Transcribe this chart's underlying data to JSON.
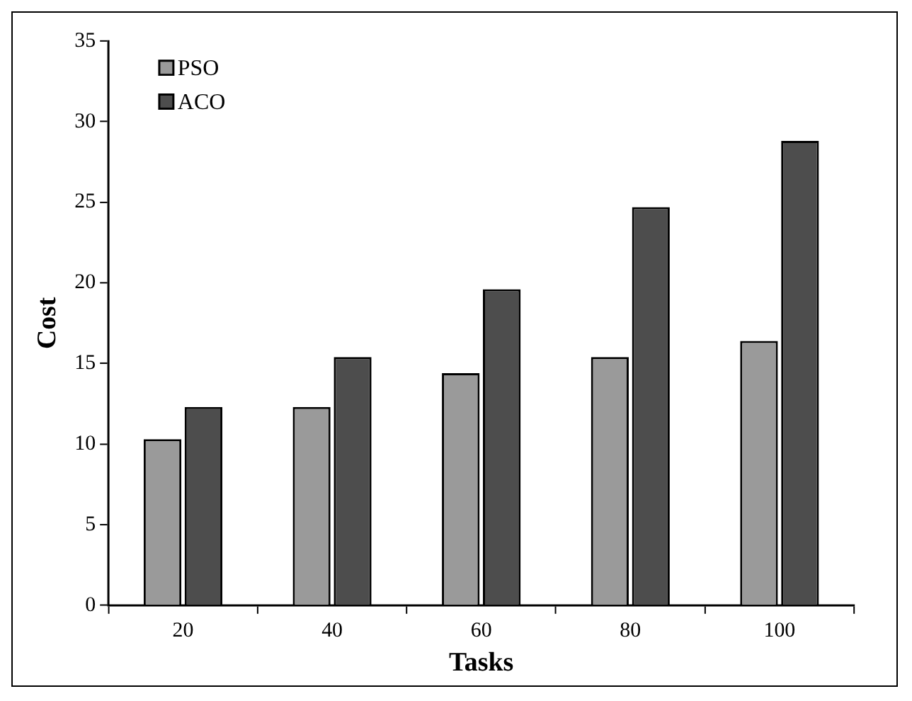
{
  "chart_data": {
    "type": "bar",
    "xlabel": "Tasks",
    "ylabel": "Cost",
    "categories": [
      "20",
      "40",
      "60",
      "80",
      "100"
    ],
    "series": [
      {
        "name": "PSO",
        "color": "#9a9a9a",
        "values": [
          10.3,
          12.3,
          14.4,
          15.4,
          16.4
        ]
      },
      {
        "name": "ACO",
        "color": "#4d4d4d",
        "values": [
          12.3,
          15.4,
          19.6,
          24.7,
          28.8
        ]
      }
    ],
    "ylim": [
      0,
      35
    ],
    "yticks": [
      0,
      5,
      10,
      15,
      20,
      25,
      30,
      35
    ],
    "grid": false,
    "legend": "top left"
  }
}
